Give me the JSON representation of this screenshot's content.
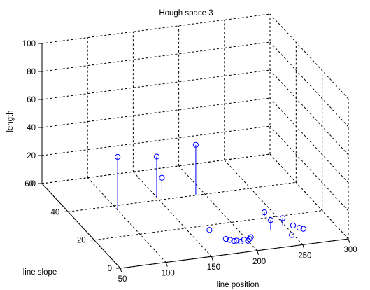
{
  "chart_data": {
    "type": "scatter",
    "plot_style": "stem3",
    "title": "Hough space 3",
    "xlabel": "line position",
    "ylabel": "line slope",
    "zlabel": "length",
    "xlim": [
      50,
      300
    ],
    "ylim": [
      0,
      60
    ],
    "zlim": [
      0,
      100
    ],
    "x_ticks": [
      "50",
      "100",
      "150",
      "200",
      "250",
      "300"
    ],
    "y_ticks": [
      "0",
      "20",
      "40",
      "60"
    ],
    "z_ticks": [
      "0",
      "20",
      "40",
      "60",
      "80",
      "100"
    ],
    "grid": true,
    "colors": {
      "stem": "#0000ff",
      "grid": "#000000"
    },
    "points": [
      {
        "x": 100,
        "y": 37,
        "z": 38
      },
      {
        "x": 150,
        "y": 42,
        "z": 29
      },
      {
        "x": 160,
        "y": 45,
        "z": 10
      },
      {
        "x": 190,
        "y": 40,
        "z": 36
      },
      {
        "x": 172,
        "y": 17,
        "z": 0
      },
      {
        "x": 180,
        "y": 10,
        "z": 0
      },
      {
        "x": 183,
        "y": 9,
        "z": 0
      },
      {
        "x": 186,
        "y": 8,
        "z": 0
      },
      {
        "x": 189,
        "y": 8,
        "z": 0
      },
      {
        "x": 192,
        "y": 7,
        "z": 0
      },
      {
        "x": 197,
        "y": 8,
        "z": 0
      },
      {
        "x": 200,
        "y": 7,
        "z": 0
      },
      {
        "x": 203,
        "y": 8,
        "z": 0
      },
      {
        "x": 206,
        "y": 9,
        "z": 0
      },
      {
        "x": 232,
        "y": 12,
        "z": 7
      },
      {
        "x": 238,
        "y": 21,
        "z": 3
      },
      {
        "x": 248,
        "y": 14,
        "z": 5
      },
      {
        "x": 248,
        "y": 7,
        "z": 0
      },
      {
        "x": 258,
        "y": 13,
        "z": 0
      },
      {
        "x": 262,
        "y": 11,
        "z": 0
      },
      {
        "x": 265,
        "y": 10,
        "z": 0
      }
    ]
  }
}
